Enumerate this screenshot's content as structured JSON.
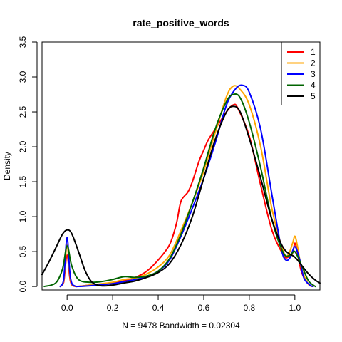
{
  "chart_data": {
    "type": "line",
    "title": "rate_positive_words",
    "xlabel": "N = 9478   Bandwidth = 0.02304",
    "ylabel": "Density",
    "xlim": [
      -0.11,
      1.11
    ],
    "ylim": [
      -0.05,
      3.5
    ],
    "x_ticks": [
      "0.0",
      "0.2",
      "0.4",
      "0.6",
      "0.8",
      "1.0"
    ],
    "x_tick_values": [
      0.0,
      0.2,
      0.4,
      0.6,
      0.8,
      1.0
    ],
    "y_ticks": [
      "0.0",
      "0.5",
      "1.0",
      "1.5",
      "2.0",
      "2.5",
      "3.0",
      "3.5"
    ],
    "y_tick_values": [
      0.0,
      0.5,
      1.0,
      1.5,
      2.0,
      2.5,
      3.0,
      3.5
    ],
    "grid": false,
    "legend_position": "top-right",
    "series": [
      {
        "name": "1",
        "color": "#ff0000",
        "points": [
          [
            -0.03,
            0.0
          ],
          [
            -0.015,
            0.06
          ],
          [
            0.0,
            0.45
          ],
          [
            0.015,
            0.07
          ],
          [
            0.04,
            0.0
          ],
          [
            0.1,
            0.02
          ],
          [
            0.2,
            0.05
          ],
          [
            0.25,
            0.08
          ],
          [
            0.3,
            0.13
          ],
          [
            0.35,
            0.22
          ],
          [
            0.4,
            0.38
          ],
          [
            0.45,
            0.6
          ],
          [
            0.48,
            0.9
          ],
          [
            0.5,
            1.22
          ],
          [
            0.53,
            1.35
          ],
          [
            0.55,
            1.5
          ],
          [
            0.58,
            1.8
          ],
          [
            0.6,
            1.95
          ],
          [
            0.62,
            2.1
          ],
          [
            0.65,
            2.25
          ],
          [
            0.7,
            2.5
          ],
          [
            0.73,
            2.6
          ],
          [
            0.75,
            2.55
          ],
          [
            0.8,
            2.15
          ],
          [
            0.85,
            1.45
          ],
          [
            0.9,
            0.8
          ],
          [
            0.95,
            0.45
          ],
          [
            0.97,
            0.42
          ],
          [
            0.99,
            0.48
          ],
          [
            1.0,
            0.62
          ],
          [
            1.01,
            0.5
          ],
          [
            1.03,
            0.2
          ],
          [
            1.06,
            0.03
          ],
          [
            1.08,
            0.0
          ]
        ]
      },
      {
        "name": "2",
        "color": "#ffa500",
        "points": [
          [
            -0.03,
            0.0
          ],
          [
            -0.015,
            0.08
          ],
          [
            0.0,
            0.6
          ],
          [
            0.015,
            0.1
          ],
          [
            0.04,
            0.0
          ],
          [
            0.1,
            0.02
          ],
          [
            0.2,
            0.06
          ],
          [
            0.25,
            0.1
          ],
          [
            0.3,
            0.12
          ],
          [
            0.35,
            0.18
          ],
          [
            0.4,
            0.28
          ],
          [
            0.45,
            0.45
          ],
          [
            0.5,
            0.8
          ],
          [
            0.55,
            1.2
          ],
          [
            0.6,
            1.65
          ],
          [
            0.65,
            2.2
          ],
          [
            0.7,
            2.72
          ],
          [
            0.73,
            2.87
          ],
          [
            0.76,
            2.82
          ],
          [
            0.8,
            2.6
          ],
          [
            0.85,
            2.0
          ],
          [
            0.9,
            1.1
          ],
          [
            0.95,
            0.5
          ],
          [
            0.97,
            0.45
          ],
          [
            0.99,
            0.62
          ],
          [
            1.0,
            0.72
          ],
          [
            1.01,
            0.6
          ],
          [
            1.03,
            0.25
          ],
          [
            1.06,
            0.03
          ],
          [
            1.08,
            0.0
          ]
        ]
      },
      {
        "name": "3",
        "color": "#0000ff",
        "points": [
          [
            -0.03,
            0.0
          ],
          [
            -0.015,
            0.1
          ],
          [
            0.0,
            0.7
          ],
          [
            0.015,
            0.12
          ],
          [
            0.04,
            0.0
          ],
          [
            0.1,
            0.01
          ],
          [
            0.2,
            0.04
          ],
          [
            0.25,
            0.07
          ],
          [
            0.3,
            0.1
          ],
          [
            0.35,
            0.14
          ],
          [
            0.4,
            0.22
          ],
          [
            0.45,
            0.38
          ],
          [
            0.5,
            0.72
          ],
          [
            0.55,
            1.12
          ],
          [
            0.6,
            1.55
          ],
          [
            0.65,
            2.05
          ],
          [
            0.7,
            2.6
          ],
          [
            0.74,
            2.83
          ],
          [
            0.77,
            2.88
          ],
          [
            0.8,
            2.78
          ],
          [
            0.85,
            2.25
          ],
          [
            0.9,
            1.3
          ],
          [
            0.94,
            0.55
          ],
          [
            0.96,
            0.38
          ],
          [
            0.98,
            0.42
          ],
          [
            1.0,
            0.57
          ],
          [
            1.02,
            0.4
          ],
          [
            1.04,
            0.12
          ],
          [
            1.07,
            0.01
          ],
          [
            1.08,
            0.0
          ]
        ]
      },
      {
        "name": "4",
        "color": "#006400",
        "points": [
          [
            -0.1,
            0.0
          ],
          [
            -0.05,
            0.05
          ],
          [
            -0.02,
            0.25
          ],
          [
            0.0,
            0.58
          ],
          [
            0.02,
            0.3
          ],
          [
            0.05,
            0.1
          ],
          [
            0.1,
            0.06
          ],
          [
            0.15,
            0.07
          ],
          [
            0.2,
            0.1
          ],
          [
            0.25,
            0.14
          ],
          [
            0.3,
            0.13
          ],
          [
            0.35,
            0.15
          ],
          [
            0.4,
            0.22
          ],
          [
            0.45,
            0.4
          ],
          [
            0.5,
            0.75
          ],
          [
            0.55,
            1.2
          ],
          [
            0.6,
            1.7
          ],
          [
            0.65,
            2.25
          ],
          [
            0.7,
            2.65
          ],
          [
            0.73,
            2.75
          ],
          [
            0.76,
            2.7
          ],
          [
            0.8,
            2.35
          ],
          [
            0.85,
            1.7
          ],
          [
            0.9,
            0.95
          ],
          [
            0.95,
            0.48
          ],
          [
            0.98,
            0.45
          ],
          [
            1.0,
            0.5
          ],
          [
            1.03,
            0.3
          ],
          [
            1.06,
            0.08
          ],
          [
            1.09,
            0.0
          ]
        ]
      },
      {
        "name": "5",
        "color": "#000000",
        "points": [
          [
            -0.11,
            0.17
          ],
          [
            -0.08,
            0.35
          ],
          [
            -0.05,
            0.55
          ],
          [
            -0.02,
            0.75
          ],
          [
            0.0,
            0.81
          ],
          [
            0.02,
            0.76
          ],
          [
            0.05,
            0.5
          ],
          [
            0.08,
            0.22
          ],
          [
            0.11,
            0.06
          ],
          [
            0.15,
            0.01
          ],
          [
            0.2,
            0.02
          ],
          [
            0.25,
            0.05
          ],
          [
            0.3,
            0.08
          ],
          [
            0.35,
            0.13
          ],
          [
            0.4,
            0.2
          ],
          [
            0.45,
            0.33
          ],
          [
            0.5,
            0.6
          ],
          [
            0.55,
            1.0
          ],
          [
            0.6,
            1.55
          ],
          [
            0.65,
            2.1
          ],
          [
            0.7,
            2.5
          ],
          [
            0.73,
            2.58
          ],
          [
            0.76,
            2.5
          ],
          [
            0.8,
            2.12
          ],
          [
            0.85,
            1.55
          ],
          [
            0.9,
            0.95
          ],
          [
            0.95,
            0.55
          ],
          [
            1.0,
            0.42
          ],
          [
            1.03,
            0.3
          ],
          [
            1.06,
            0.18
          ],
          [
            1.09,
            0.09
          ],
          [
            1.11,
            0.05
          ]
        ]
      }
    ]
  }
}
